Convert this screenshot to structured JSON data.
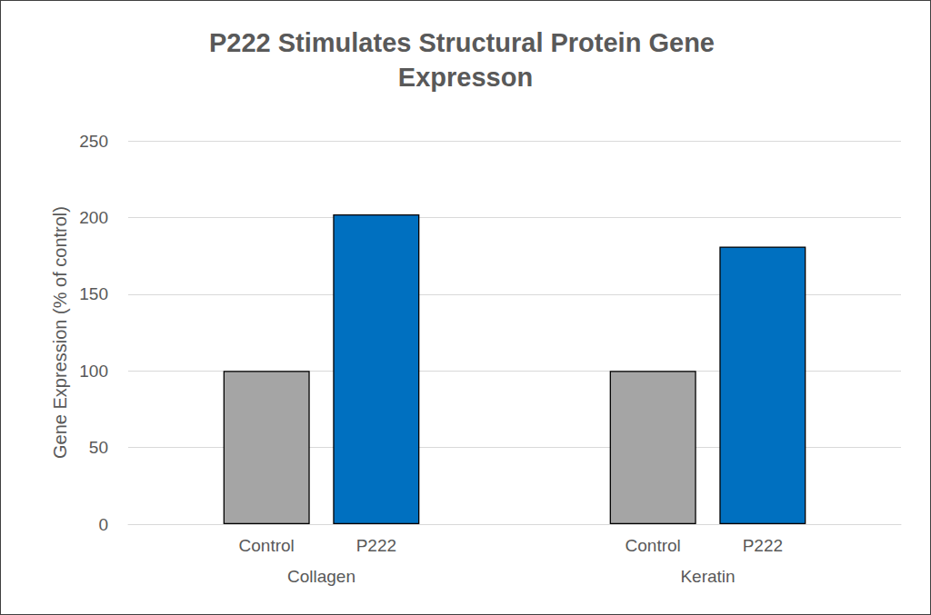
{
  "chart_data": {
    "type": "bar",
    "title": "P222 Stimulates Structural Protein Gene Expresson",
    "y_label": "Gene Expression (% of control)",
    "categories": [
      "Collagen",
      "Keratin"
    ],
    "series": [
      {
        "name": "Control",
        "color": "#a5a5a5",
        "values": [
          100,
          100
        ]
      },
      {
        "name": "P222",
        "color": "#0070c0",
        "values": [
          202,
          181
        ]
      }
    ],
    "ylim": [
      0,
      250
    ],
    "yticks": [
      0,
      50,
      100,
      150,
      200,
      250
    ],
    "grid": true
  }
}
